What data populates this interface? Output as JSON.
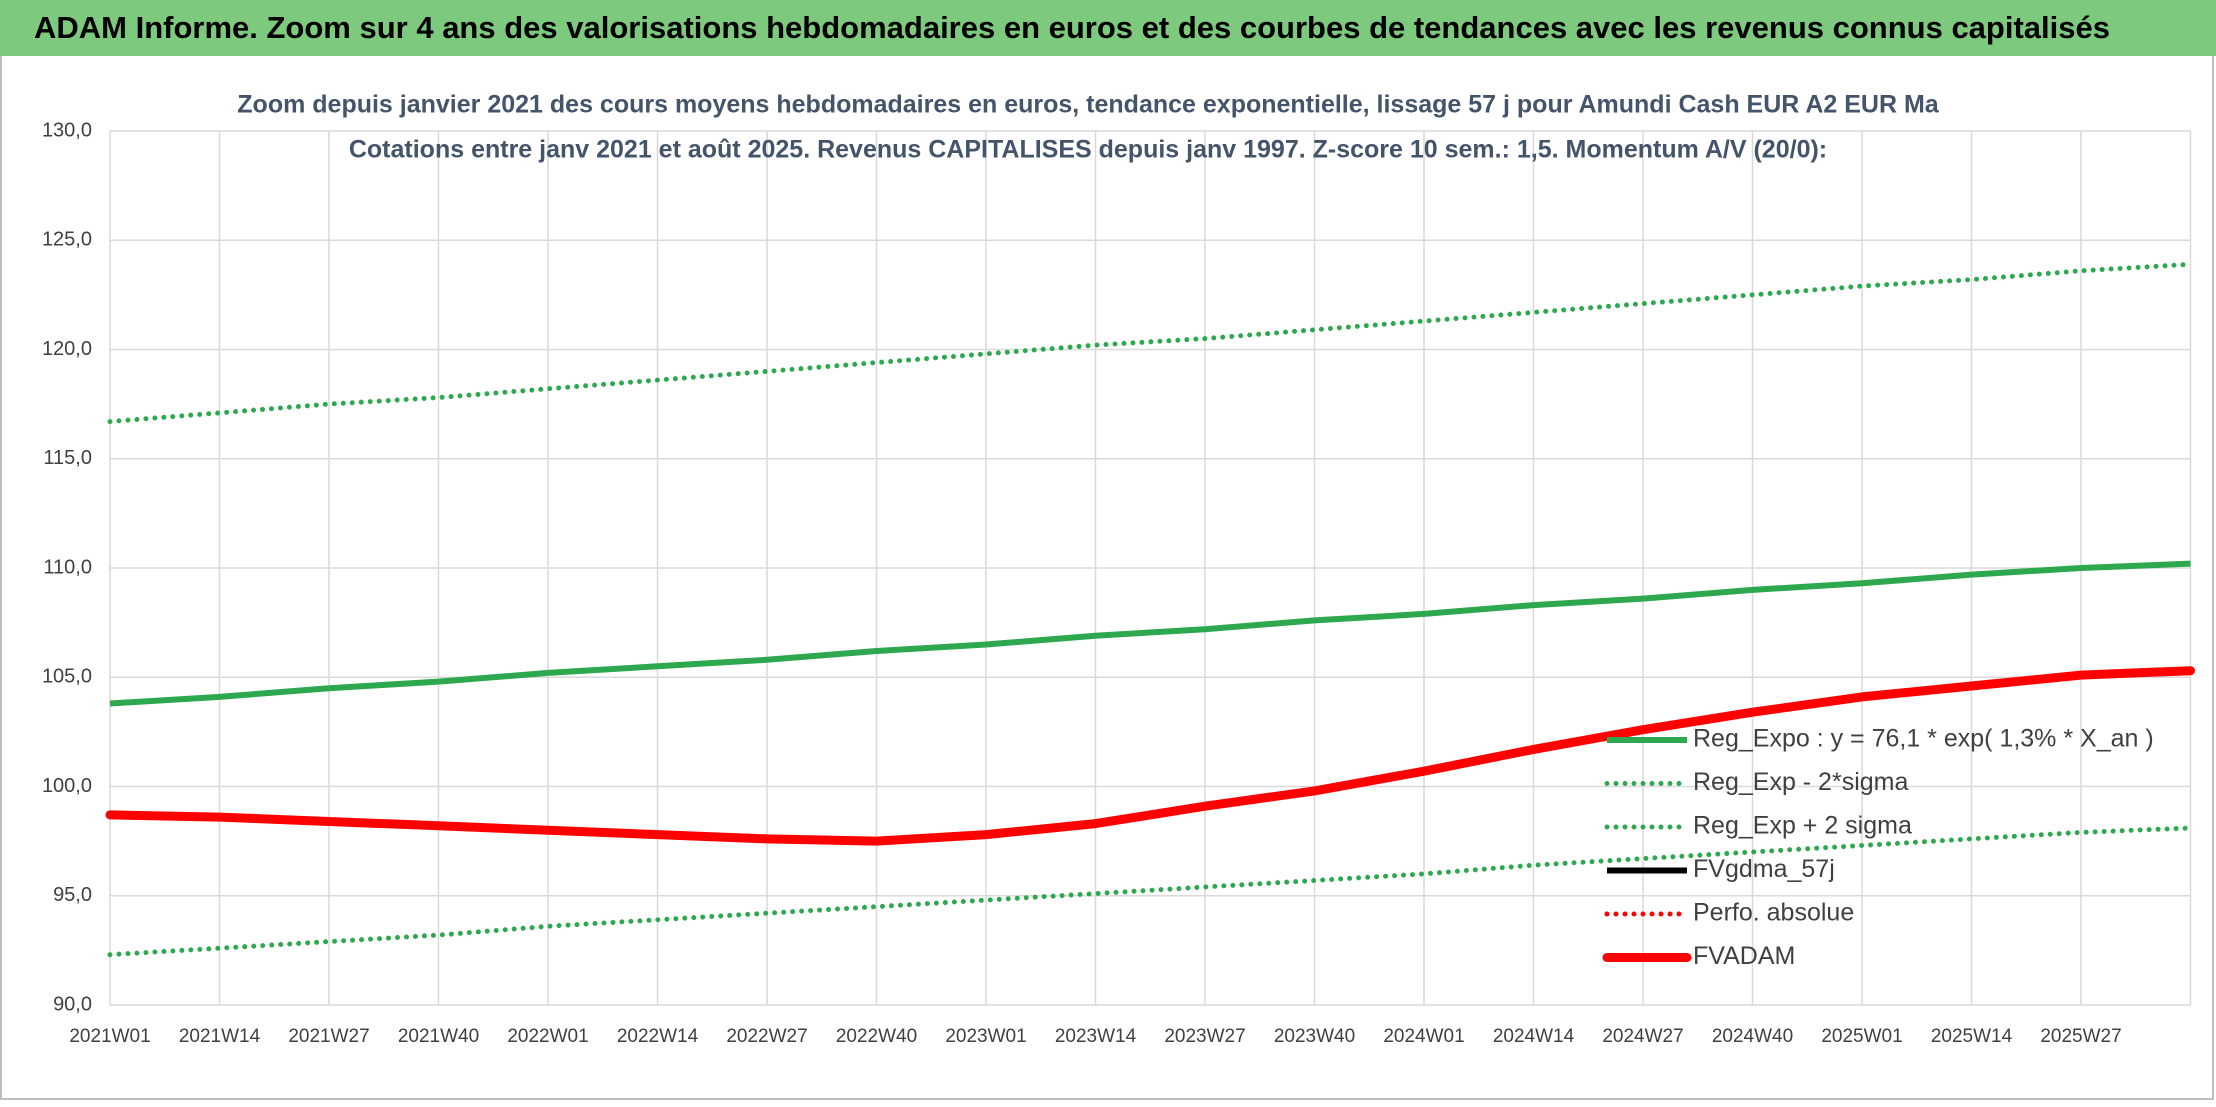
{
  "page_title": "ADAM Informe. Zoom sur 4 ans des valorisations hebdomadaires en euros et des courbes de tendances avec les revenus connus capitalisés",
  "chart_data": {
    "type": "line",
    "title": "Zoom depuis janvier 2021 des cours moyens hebdomadaires en euros, tendance exponentielle, lissage 57 j pour Amundi Cash EUR A2 EUR Ma",
    "subtitle": "Cotations entre janv 2021 et août 2025. Revenus CAPITALISES depuis janv 1997. Z-score 10 sem.: 1,5. Momentum A/V (20/0):",
    "categories": [
      "2021W01",
      "2021W14",
      "2021W27",
      "2021W40",
      "2022W01",
      "2022W14",
      "2022W27",
      "2022W40",
      "2023W01",
      "2023W14",
      "2023W27",
      "2023W40",
      "2024W01",
      "2024W14",
      "2024W27",
      "2024W40",
      "2025W01",
      "2025W14",
      "2025W27",
      null
    ],
    "ylim": [
      90,
      130
    ],
    "yticks": [
      {
        "value": 90,
        "label": "90,0"
      },
      {
        "value": 95,
        "label": "95,0"
      },
      {
        "value": 100,
        "label": "100,0"
      },
      {
        "value": 105,
        "label": "105,0"
      },
      {
        "value": 110,
        "label": "110,0"
      },
      {
        "value": 115,
        "label": "115,0"
      },
      {
        "value": 120,
        "label": "120,0"
      },
      {
        "value": 125,
        "label": "125,0"
      },
      {
        "value": 130,
        "label": "130,0"
      }
    ],
    "grid": true,
    "legend": "right",
    "series": [
      {
        "name": "Reg_Expo : y = 76,1 * exp( 1,3% *  X_an )",
        "color": "#2ea84f",
        "style": "solid",
        "values": [
          103.8,
          104.1,
          104.5,
          104.8,
          105.2,
          105.5,
          105.8,
          106.2,
          106.5,
          106.9,
          107.2,
          107.6,
          107.9,
          108.3,
          108.6,
          109.0,
          109.3,
          109.7,
          110.0,
          110.2
        ]
      },
      {
        "name": "Reg_Exp - 2*sigma",
        "color": "#2ea84f",
        "style": "dotted",
        "values": [
          92.3,
          92.6,
          92.9,
          93.2,
          93.6,
          93.9,
          94.2,
          94.5,
          94.8,
          95.1,
          95.4,
          95.7,
          96.0,
          96.4,
          96.7,
          97.0,
          97.3,
          97.6,
          97.9,
          98.1
        ]
      },
      {
        "name": "Reg_Exp + 2 sigma",
        "color": "#2ea84f",
        "style": "dotted",
        "values": [
          116.7,
          117.1,
          117.5,
          117.8,
          118.2,
          118.6,
          119.0,
          119.4,
          119.8,
          120.2,
          120.5,
          120.9,
          121.3,
          121.7,
          122.1,
          122.5,
          122.9,
          123.2,
          123.6,
          123.9
        ]
      },
      {
        "name": "FVgdma_57j",
        "color": "#000000",
        "style": "solid",
        "values": [
          98.7,
          98.6,
          98.4,
          98.2,
          98.0,
          97.8,
          97.6,
          97.5,
          97.8,
          98.3,
          99.1,
          99.8,
          100.7,
          101.7,
          102.6,
          103.4,
          104.1,
          104.6,
          105.1,
          105.3
        ]
      },
      {
        "name": "Perfo. absolue",
        "color": "#ff0000",
        "style": "dotted",
        "values": [
          98.7,
          98.6,
          98.4,
          98.2,
          98.0,
          97.8,
          97.6,
          97.5,
          97.8,
          98.3,
          99.1,
          99.8,
          100.7,
          101.7,
          102.6,
          103.4,
          104.1,
          104.6,
          105.1,
          105.3
        ]
      },
      {
        "name": "FVADAM",
        "color": "#ff0000",
        "style": "thick",
        "values": [
          98.7,
          98.6,
          98.4,
          98.2,
          98.0,
          97.8,
          97.6,
          97.5,
          97.8,
          98.3,
          99.1,
          99.8,
          100.7,
          101.7,
          102.6,
          103.4,
          104.1,
          104.6,
          105.1,
          105.3
        ]
      }
    ]
  }
}
